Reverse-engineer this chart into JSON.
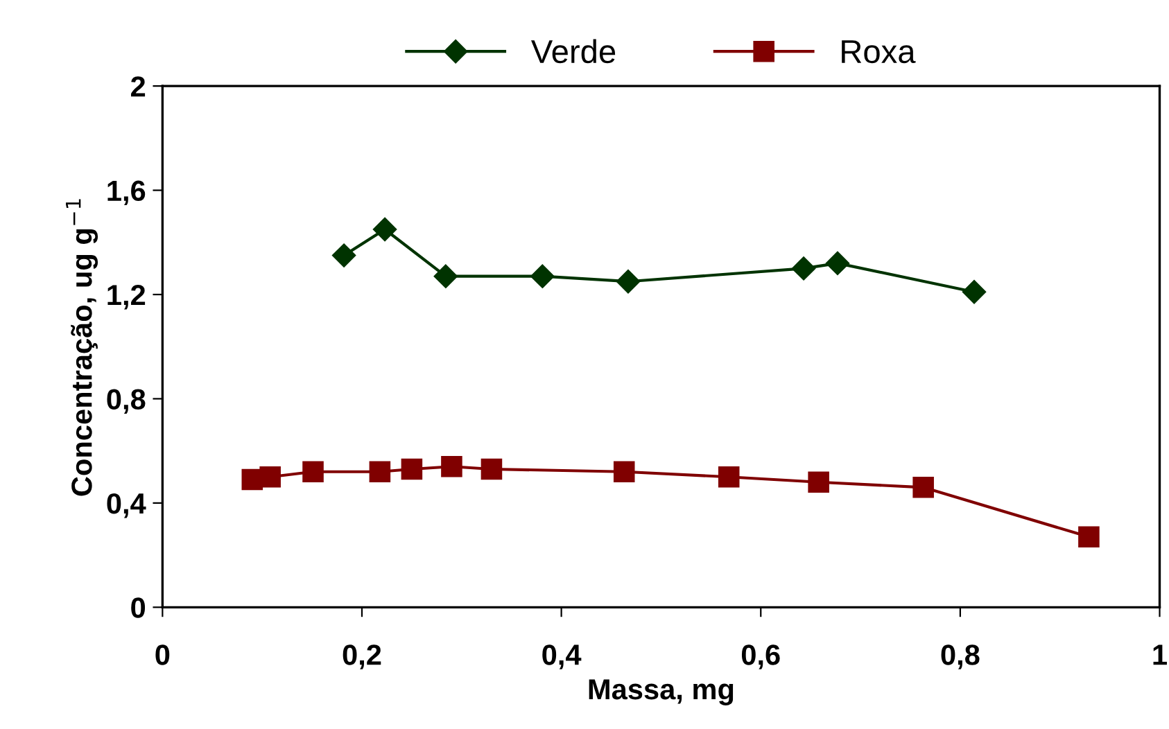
{
  "chart_data": {
    "type": "line",
    "xlabel": "Massa, mg",
    "ylabel": "Concentração, ug g$^{−1}$",
    "xlim": [
      0,
      1
    ],
    "xticks": [
      0,
      {
        "value": 0.2,
        "label": "0,2"
      },
      {
        "value": 0.4,
        "label": "0,4"
      },
      {
        "value": 0.6,
        "label": "0,6"
      },
      {
        "value": 0.8,
        "label": "0,8"
      },
      1
    ],
    "ylim": [
      0,
      2
    ],
    "yticks": [
      0,
      {
        "value": 0.4,
        "label": "0,4"
      },
      {
        "value": 0.8,
        "label": "0,8"
      },
      {
        "value": 1.2,
        "label": "1,2"
      },
      {
        "value": 1.6,
        "label": "1,6"
      },
      2
    ],
    "grid": false,
    "legend": "top",
    "line_style": "solid",
    "series": [
      {
        "name": "Verde",
        "color": "#003300",
        "marker": "diamond",
        "x": [
          0.182,
          0.223,
          0.284,
          0.381,
          0.467,
          0.643,
          0.677,
          0.814
        ],
        "values": [
          1.35,
          1.45,
          1.27,
          1.27,
          1.25,
          1.3,
          1.32,
          1.21
        ]
      },
      {
        "name": "Roxa",
        "color": "#800000",
        "marker": "square",
        "x": [
          0.09,
          0.108,
          0.151,
          0.218,
          0.25,
          0.29,
          0.33,
          0.463,
          0.568,
          0.658,
          0.763,
          0.929
        ],
        "values": [
          0.49,
          0.5,
          0.52,
          0.52,
          0.53,
          0.54,
          0.53,
          0.52,
          0.5,
          0.48,
          0.46,
          0.27
        ]
      }
    ]
  }
}
